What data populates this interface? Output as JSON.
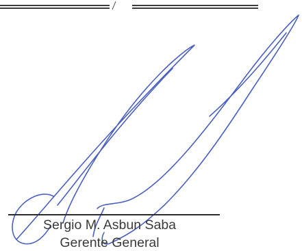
{
  "signature_block": {
    "name": "Sergio M. Asbun Saba",
    "title": "Gerente General"
  },
  "colors": {
    "ink": "#4a5fc0",
    "text": "#3a3a3a",
    "rule": "#2b2b2b"
  }
}
